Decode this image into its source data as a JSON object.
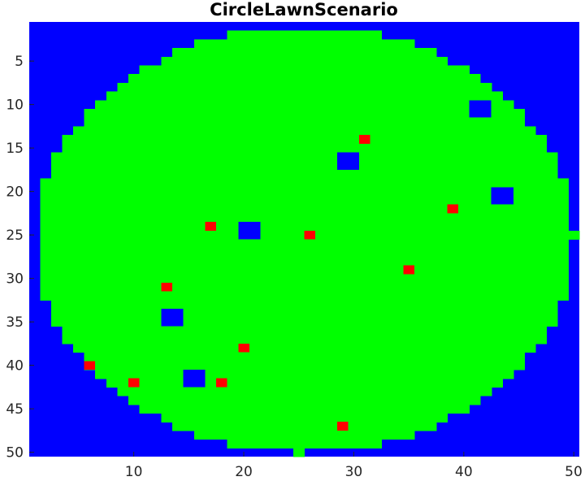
{
  "chart_data": {
    "type": "heatmap",
    "title": "CircleLawnScenario",
    "xlabel": "",
    "ylabel": "",
    "grid": false,
    "x_range": [
      0.5,
      50.5
    ],
    "y_range": [
      0.5,
      50.5
    ],
    "y_direction": "reversed",
    "x_ticks": [
      10,
      20,
      30,
      40,
      50
    ],
    "y_ticks": [
      5,
      10,
      15,
      20,
      25,
      30,
      35,
      40,
      45,
      50
    ],
    "colors": {
      "background": "#0000ff",
      "lawn": "#00ff00",
      "obstacle": "#0000ff",
      "target": "#ff0000"
    },
    "circle": {
      "center_x": 25.5,
      "center_y": 25.5,
      "radius": 24.5
    },
    "circle_extras": [
      {
        "x": 50,
        "y": 25
      },
      {
        "x": 25,
        "y": 50
      }
    ],
    "obstacles": [
      {
        "x": 41,
        "y": 10,
        "w": 2,
        "h": 2
      },
      {
        "x": 29,
        "y": 16,
        "w": 2,
        "h": 2
      },
      {
        "x": 43,
        "y": 20,
        "w": 2,
        "h": 2
      },
      {
        "x": 20,
        "y": 24,
        "w": 2,
        "h": 2
      },
      {
        "x": 13,
        "y": 34,
        "w": 2,
        "h": 2
      },
      {
        "x": 15,
        "y": 41,
        "w": 2,
        "h": 2
      }
    ],
    "targets": [
      {
        "x": 31,
        "y": 14
      },
      {
        "x": 39,
        "y": 22
      },
      {
        "x": 17,
        "y": 24
      },
      {
        "x": 26,
        "y": 25
      },
      {
        "x": 35,
        "y": 29
      },
      {
        "x": 13,
        "y": 31
      },
      {
        "x": 20,
        "y": 38
      },
      {
        "x": 6,
        "y": 40
      },
      {
        "x": 10,
        "y": 42
      },
      {
        "x": 18,
        "y": 42
      },
      {
        "x": 29,
        "y": 47
      }
    ]
  }
}
